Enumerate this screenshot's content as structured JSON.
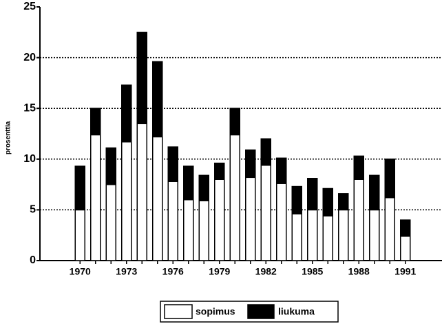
{
  "chart_data": {
    "type": "stacked_bar",
    "y_label": "prosenttia",
    "categories": [
      "1970",
      null,
      null,
      "1973",
      null,
      null,
      "1976",
      null,
      null,
      "1979",
      null,
      null,
      "1982",
      null,
      null,
      "1985",
      null,
      null,
      "1988",
      null,
      null,
      "1991"
    ],
    "series": [
      {
        "name": "sopimus",
        "color": "#ffffff",
        "values": [
          5,
          12.4,
          7.5,
          11.7,
          13.5,
          12.2,
          7.8,
          6,
          5.9,
          8,
          12.4,
          8.2,
          9.4,
          7.6,
          4.6,
          5,
          4.4,
          5,
          8,
          5,
          6.2,
          2.4
        ]
      },
      {
        "name": "liukuma",
        "color": "#000000",
        "values": [
          4.3,
          2.6,
          3.6,
          5.6,
          9,
          7.4,
          3.4,
          3.3,
          2.5,
          1.6,
          2.6,
          2.7,
          2.6,
          2.5,
          2.7,
          3.1,
          2.7,
          1.6,
          2.3,
          3.4,
          3.8,
          1.6
        ]
      }
    ],
    "ylim": [
      0,
      25
    ],
    "yticks": [
      0,
      5,
      10,
      15,
      20,
      25
    ],
    "grid": true,
    "legend": "bottom"
  }
}
